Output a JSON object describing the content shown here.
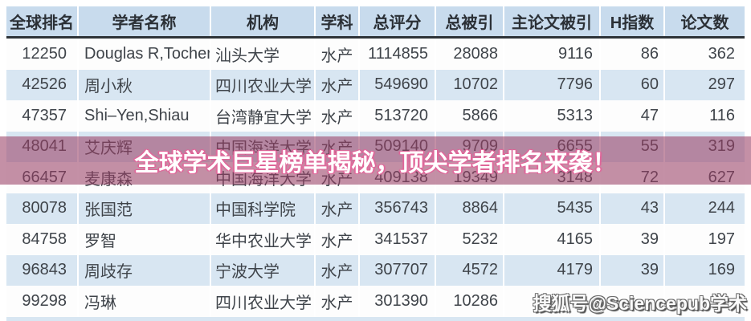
{
  "chart_data": {
    "type": "table",
    "columns": [
      "全球排名",
      "学者名称",
      "机构",
      "学科",
      "总评分",
      "总被引",
      "主论文被引",
      "H指数",
      "论文数"
    ],
    "rows": [
      [
        "12250",
        "Douglas R,Tocher",
        "汕头大学",
        "水产",
        "1114855",
        "28088",
        "9116",
        "86",
        "362"
      ],
      [
        "42526",
        "周小秋",
        "四川农业大学",
        "水产",
        "549690",
        "10702",
        "7796",
        "60",
        "297"
      ],
      [
        "47357",
        "Shi–Yen,Shiau",
        "台湾静宜大学",
        "水产",
        "513720",
        "5866",
        "5313",
        "47",
        "116"
      ],
      [
        "48041",
        "艾庆辉",
        "中国海洋大学",
        "水产",
        "509140",
        "9709",
        "6655",
        "55",
        "319"
      ],
      [
        "66457",
        "麦康森",
        "中国海洋大学",
        "水产",
        "409138",
        "19349",
        "3148",
        "72",
        "627"
      ],
      [
        "80078",
        "张国范",
        "中国科学院",
        "水产",
        "356743",
        "8864",
        "5435",
        "43",
        "244"
      ],
      [
        "84758",
        "罗智",
        "华中农业大学",
        "水产",
        "341537",
        "5232",
        "4165",
        "39",
        "197"
      ],
      [
        "96843",
        "周歧存",
        "宁波大学",
        "水产",
        "307707",
        "4572",
        "4179",
        "39",
        "169"
      ],
      [
        "99298",
        "冯琳",
        "四川农业大学",
        "水产",
        "301390",
        "10286",
        "",
        "",
        ""
      ]
    ]
  },
  "banner": {
    "text": "全球学术巨星榜单揭秘，顶尖学者排名来袭！"
  },
  "watermark": {
    "text": "搜狐号@Sciencepub学术"
  },
  "colors": {
    "header_bg": "#c8dbed",
    "stripe_bg": "#d8e6f2",
    "text": "#3f444a",
    "banner_overlay": "rgba(153,63,102,0.58)",
    "banner_text": "#ffffff",
    "banner_outline": "#e0679a"
  }
}
